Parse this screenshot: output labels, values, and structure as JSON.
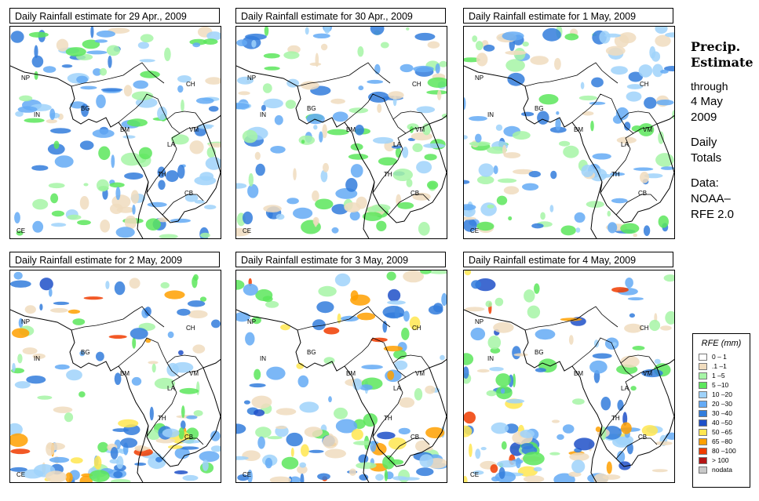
{
  "panels": [
    {
      "title": "Daily Rainfall estimate for  29 Apr., 2009",
      "seed": 1
    },
    {
      "title": "Daily Rainfall estimate for  30 Apr., 2009",
      "seed": 2
    },
    {
      "title": "Daily Rainfall estimate for  1 May, 2009",
      "seed": 3
    },
    {
      "title": "Daily Rainfall estimate for  2 May, 2009",
      "seed": 4
    },
    {
      "title": "Daily Rainfall estimate for  3 May, 2009",
      "seed": 5
    },
    {
      "title": "Daily Rainfall estimate for  4 May, 2009",
      "seed": 6
    }
  ],
  "country_labels": [
    "NP",
    "CH",
    "IN",
    "BG",
    "BM",
    "VM",
    "LA",
    "TH",
    "CB",
    "CE"
  ],
  "sidebar": {
    "line1": "Precip.",
    "line2": "Estimate",
    "line3": "through",
    "line4": "4 May",
    "line5": "2009",
    "line6": "Daily",
    "line7": "Totals",
    "line8": "Data:",
    "line9": "NOAA–",
    "line10": "RFE 2.0"
  },
  "legend": {
    "title": "RFE (mm)",
    "items": [
      {
        "label": "0 – 1",
        "color": "#ffffff"
      },
      {
        "label": ".1 –1",
        "color": "#f0dcbe"
      },
      {
        "label": "1 –5",
        "color": "#a6f5a6"
      },
      {
        "label": "5 –10",
        "color": "#5ce65c"
      },
      {
        "label": "10 –20",
        "color": "#9fd2fa"
      },
      {
        "label": "20 –30",
        "color": "#64aaf5"
      },
      {
        "label": "30 –40",
        "color": "#327ddc"
      },
      {
        "label": "40 –50",
        "color": "#1e50c8"
      },
      {
        "label": "50 –65",
        "color": "#ffe650"
      },
      {
        "label": "65 –80",
        "color": "#ffa000"
      },
      {
        "label": "80 –100",
        "color": "#f03c00"
      },
      {
        "label": "> 100",
        "color": "#b41414"
      },
      {
        "label": "nodata",
        "color": "#c8c8c8"
      }
    ]
  }
}
